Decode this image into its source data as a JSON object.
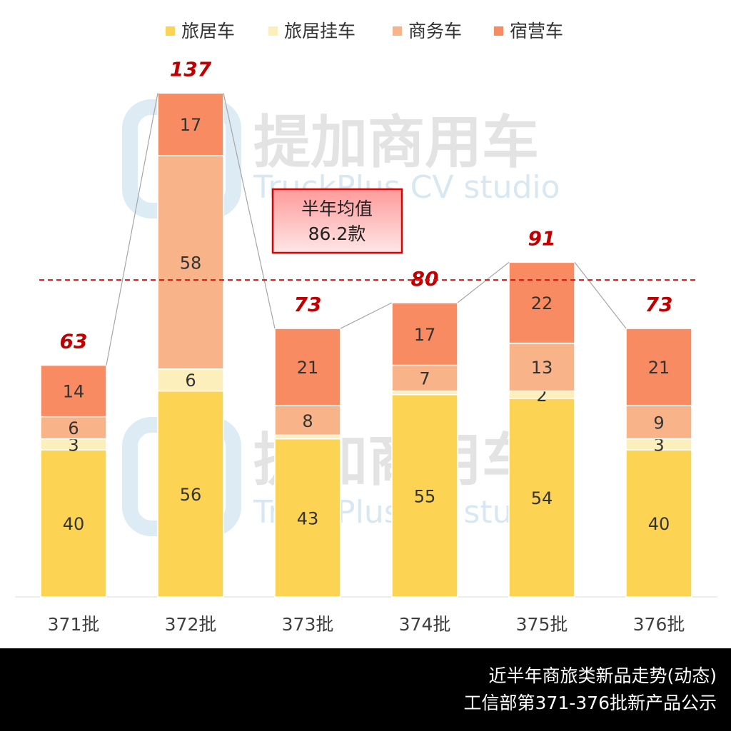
{
  "chart_data": {
    "type": "stacked_bar",
    "categories": [
      "371批",
      "372批",
      "373批",
      "374批",
      "375批",
      "376批"
    ],
    "series": [
      {
        "name": "旅居车",
        "color": "#fcd352",
        "values": [
          40,
          56,
          43,
          55,
          54,
          40
        ]
      },
      {
        "name": "旅居挂车",
        "color": "#fdefbb",
        "values": [
          3,
          6,
          1,
          1,
          2,
          3
        ],
        "value_labels": [
          "3",
          "6",
          null,
          null,
          "2",
          "3"
        ]
      },
      {
        "name": "商务车",
        "color": "#f9b389",
        "values": [
          6,
          58,
          8,
          7,
          13,
          9
        ]
      },
      {
        "name": "宿营车",
        "color": "#f98b62",
        "values": [
          14,
          17,
          21,
          17,
          22,
          21
        ]
      }
    ],
    "totals": [
      63,
      137,
      73,
      80,
      91,
      73
    ],
    "average": 86.2,
    "average_title": "半年均值",
    "average_label": "86.2款",
    "ylim": [
      0,
      140
    ],
    "watermark": {
      "title": "提加商用车",
      "subtitle": "TruckPlus CV studio"
    },
    "footer": [
      "近半年商旅类新品走势(动态)",
      "工信部第371-376批新产品公示"
    ]
  }
}
